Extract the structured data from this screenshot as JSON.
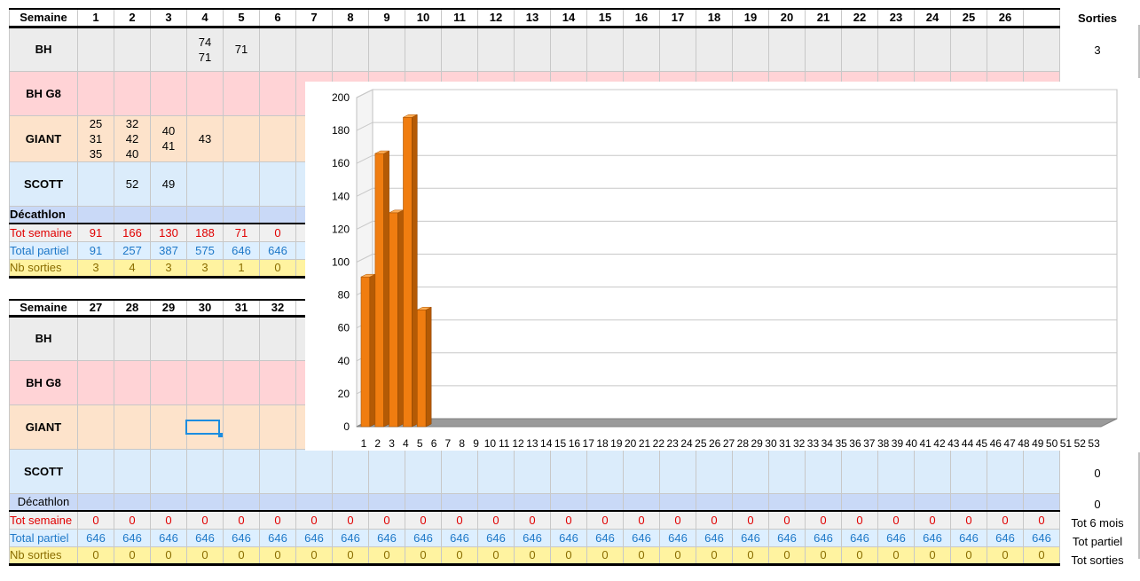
{
  "top_table": {
    "header_label": "Semaine",
    "weeks": [
      "1",
      "2",
      "3",
      "4",
      "5",
      "6",
      "7",
      "8",
      "9",
      "10",
      "11",
      "12",
      "13",
      "14",
      "15",
      "16",
      "17",
      "18",
      "19",
      "20",
      "21",
      "22",
      "23",
      "24",
      "25",
      "26"
    ],
    "rows": {
      "bh": {
        "label": "BH",
        "cells": {
          "4": [
            "74",
            "71"
          ],
          "5": [
            "71"
          ]
        }
      },
      "bhg8": {
        "label": "BH G8",
        "cells": {}
      },
      "giant": {
        "label": "GIANT",
        "cells": {
          "1": [
            "25",
            "31",
            "35"
          ],
          "2": [
            "32",
            "42",
            "40"
          ],
          "3": [
            "40",
            "41"
          ],
          "4": [
            "43"
          ]
        }
      },
      "scott": {
        "label": "SCOTT",
        "cells": {
          "2": [
            "52"
          ],
          "3": [
            "49"
          ]
        }
      },
      "decathlon": {
        "label": "Décathlon"
      },
      "tot_semaine": {
        "label": "Tot semaine",
        "values": [
          "91",
          "166",
          "130",
          "188",
          "71",
          "0"
        ]
      },
      "total_partiel": {
        "label": "Total partiel",
        "values": [
          "91",
          "257",
          "387",
          "575",
          "646",
          "646"
        ]
      },
      "nb_sorties": {
        "label": "Nb sorties",
        "values": [
          "3",
          "4",
          "3",
          "3",
          "1",
          "0"
        ]
      }
    },
    "side": {
      "header": "Sorties",
      "bh_value": "3"
    }
  },
  "bottom_table": {
    "header_label": "Semaine",
    "weeks": [
      "27",
      "28",
      "29",
      "30",
      "31",
      "32"
    ],
    "rows": {
      "bh": {
        "label": "BH"
      },
      "bhg8": {
        "label": "BH G8"
      },
      "giant": {
        "label": "GIANT"
      },
      "scott": {
        "label": "SCOTT"
      },
      "decathlon": {
        "label": "Décathlon"
      },
      "tot_semaine": {
        "label": "Tot semaine",
        "value": "0"
      },
      "total_partiel": {
        "label": "Total partiel",
        "value": "646"
      },
      "nb_sorties": {
        "label": "Nb sorties",
        "value": "0"
      }
    },
    "side": {
      "scott_value": "0",
      "decathlon_value": "0",
      "tot_6_mois": "Tot 6 mois",
      "tot_partiel": "Tot partiel",
      "tot_sorties": "Tot sorties"
    }
  },
  "chart_data": {
    "type": "bar",
    "style": "3d-column",
    "bar_color": "#f07d10",
    "categories": [
      "1",
      "2",
      "3",
      "4",
      "5",
      "6",
      "7",
      "8",
      "9",
      "10",
      "11",
      "12",
      "13",
      "14",
      "15",
      "16",
      "17",
      "18",
      "19",
      "20",
      "21",
      "22",
      "23",
      "24",
      "25",
      "26",
      "27",
      "28",
      "29",
      "30",
      "31",
      "32",
      "33",
      "34",
      "35",
      "36",
      "37",
      "38",
      "39",
      "40",
      "41",
      "42",
      "43",
      "44",
      "45",
      "46",
      "47",
      "48",
      "49",
      "50",
      "51",
      "52",
      "53"
    ],
    "values": [
      91,
      166,
      130,
      188,
      71,
      0,
      0,
      0,
      0,
      0,
      0,
      0,
      0,
      0,
      0,
      0,
      0,
      0,
      0,
      0,
      0,
      0,
      0,
      0,
      0,
      0,
      0,
      0,
      0,
      0,
      0,
      0,
      0,
      0,
      0,
      0,
      0,
      0,
      0,
      0,
      0,
      0,
      0,
      0,
      0,
      0,
      0,
      0,
      0,
      0,
      0,
      0,
      0
    ],
    "ylim": [
      0,
      200
    ],
    "yticks": [
      "0",
      "20",
      "40",
      "60",
      "80",
      "100",
      "120",
      "140",
      "160",
      "180",
      "200"
    ],
    "grid": true,
    "legend": "none"
  }
}
